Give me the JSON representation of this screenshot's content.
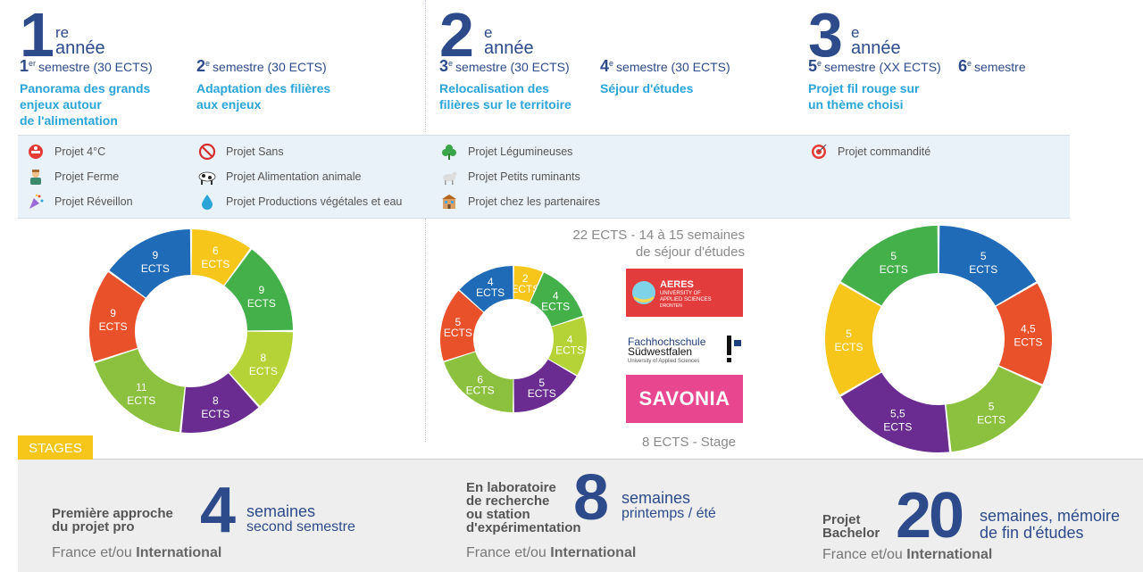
{
  "years": [
    {
      "num": "1",
      "sup": "re",
      "label": "année",
      "semesters": [
        {
          "num": "1",
          "sup": "er",
          "text": "semestre (30 ECTS)",
          "theme": "Panorama des grands\nenjeux autour\nde l'alimentation"
        },
        {
          "num": "2",
          "sup": "e",
          "text": "semestre (30 ECTS)",
          "theme": "Adaptation des filières\naux enjeux"
        }
      ]
    },
    {
      "num": "2",
      "sup": "e",
      "label": "année",
      "semesters": [
        {
          "num": "3",
          "sup": "e",
          "text": "semestre (30 ECTS)",
          "theme": "Relocalisation des\nfilières sur le territoire"
        },
        {
          "num": "4",
          "sup": "e",
          "text": "semestre (30 ECTS)",
          "theme": "Séjour d'études"
        }
      ]
    },
    {
      "num": "3",
      "sup": "e",
      "label": "année",
      "semesters": [
        {
          "num": "5",
          "sup": "e",
          "text": "semestre (XX ECTS)",
          "theme": "Projet fil rouge sur\nun thème choisi"
        },
        {
          "num": "6",
          "sup": "e",
          "text": "semestre",
          "theme": ""
        }
      ]
    }
  ],
  "projects": {
    "col1": [
      {
        "label": "Projet 4°C",
        "icon": "thermometer-icon"
      },
      {
        "label": "Projet Ferme",
        "icon": "farmer-icon"
      },
      {
        "label": "Projet Réveillon",
        "icon": "party-icon"
      }
    ],
    "col2": [
      {
        "label": "Projet Sans",
        "icon": "forbidden-icon"
      },
      {
        "label": "Projet Alimentation animale",
        "icon": "cow-icon"
      },
      {
        "label": "Projet Productions végétales et eau",
        "icon": "water-drop-icon"
      }
    ],
    "col3": [
      {
        "label": "Projet Légumineuses",
        "icon": "clover-icon"
      },
      {
        "label": "Projet Petits ruminants",
        "icon": "goat-icon"
      },
      {
        "label": "Projet chez les partenaires",
        "icon": "building-icon"
      }
    ],
    "col4": [
      {
        "label": "Projet commandité",
        "icon": "target-icon"
      }
    ]
  },
  "colors": {
    "blue": "#1f6bb8",
    "yellow": "#f6c61b",
    "green": "#44b04a",
    "lime": "#b5d236",
    "purple": "#6a2c91",
    "lightgreen": "#8cc13f",
    "red": "#e8512a"
  },
  "chart_data": [
    {
      "type": "pie",
      "donut": true,
      "unit": "ECTS",
      "slices": [
        {
          "value": 6,
          "color": "#f6c61b",
          "label": "6"
        },
        {
          "value": 9,
          "color": "#44b04a",
          "label": "9"
        },
        {
          "value": 8,
          "color": "#b5d236",
          "label": "8"
        },
        {
          "value": 8,
          "color": "#6a2c91",
          "label": "8"
        },
        {
          "value": 11,
          "color": "#8cc13f",
          "label": "11"
        },
        {
          "value": 9,
          "color": "#e8512a",
          "label": "9"
        },
        {
          "value": 9,
          "color": "#1f6bb8",
          "label": "9"
        }
      ]
    },
    {
      "type": "pie",
      "donut": true,
      "unit": "ECTS",
      "slices": [
        {
          "value": 2,
          "color": "#f6c61b",
          "label": "2"
        },
        {
          "value": 4,
          "color": "#44b04a",
          "label": "4"
        },
        {
          "value": 4,
          "color": "#b5d236",
          "label": "4"
        },
        {
          "value": 5,
          "color": "#6a2c91",
          "label": "5"
        },
        {
          "value": 6,
          "color": "#8cc13f",
          "label": "6"
        },
        {
          "value": 5,
          "color": "#e8512a",
          "label": "5"
        },
        {
          "value": 4,
          "color": "#1f6bb8",
          "label": "4"
        }
      ]
    },
    {
      "type": "pie",
      "donut": true,
      "unit": "ECTS",
      "slices": [
        {
          "value": 5,
          "color": "#1f6bb8",
          "label": "5"
        },
        {
          "value": 4.5,
          "color": "#e8512a",
          "label": "4,5"
        },
        {
          "value": 5,
          "color": "#8cc13f",
          "label": "5"
        },
        {
          "value": 5.5,
          "color": "#6a2c91",
          "label": "5,5"
        },
        {
          "value": 5,
          "color": "#f6c61b",
          "label": "5"
        },
        {
          "value": 5,
          "color": "#44b04a",
          "label": "5"
        }
      ]
    }
  ],
  "year2": {
    "caption_top": "22 ECTS - 14 à 15 semaines\nde séjour d'études",
    "caption_bottom": "8 ECTS - Stage",
    "logos": {
      "aeres_line1": "AERES",
      "aeres_line2": "UNIVERSITY OF",
      "aeres_line3": "APPLIED SCIENCES",
      "aeres_line4": "DRONTEN",
      "fh_line1": "Fachhochschule",
      "fh_line2": "Südwestfalen",
      "fh_line3": "University of Applied Sciences",
      "savonia": "SAVONIA"
    }
  },
  "stages": {
    "tag": "STAGES",
    "items": [
      {
        "title": "Première approche\ndu projet pro",
        "num": "4",
        "unit": "semaines",
        "sub": "second semestre",
        "loc_prefix": "France et/ou",
        "loc_bold": "International"
      },
      {
        "title": "En laboratoire\nde recherche\nou station\nd'expérimentation",
        "num": "8",
        "unit": "semaines",
        "sub": "printemps / été",
        "loc_prefix": "France et/ou",
        "loc_bold": "International"
      },
      {
        "title": "Projet\nBachelor",
        "num": "20",
        "unit": "semaines, mémoire\nde fin d'études",
        "sub": "",
        "loc_prefix": "France et/ou",
        "loc_bold": "International"
      }
    ]
  }
}
